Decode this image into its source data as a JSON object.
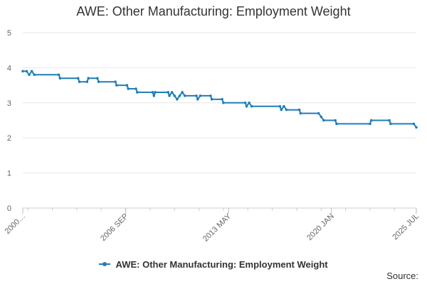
{
  "title": "AWE: Other Manufacturing: Employment Weight",
  "source_label": "Source:",
  "colors": {
    "series": "#1f7eb8",
    "grid": "#e6e6e6",
    "axis_text": "#666666"
  },
  "chart_data": {
    "type": "line",
    "title": "AWE: Other Manufacturing: Employment Weight",
    "xlabel": "",
    "ylabel": "",
    "x_range": [
      "2000-01",
      "2025-07"
    ],
    "xticks": [
      {
        "x": "2000-01",
        "label": "2000…"
      },
      {
        "x": "2006-09",
        "label": "2006 SEP"
      },
      {
        "x": "2013-05",
        "label": "2013 MAY"
      },
      {
        "x": "2020-01",
        "label": "2020 JAN"
      },
      {
        "x": "2025-07",
        "label": "2025 JUL"
      }
    ],
    "ylim": [
      0,
      5
    ],
    "yticks": [
      0,
      1,
      2,
      3,
      4,
      5
    ],
    "grid": true,
    "legend_position": "bottom",
    "series": [
      {
        "name": "AWE: Other Manufacturing: Employment Weight",
        "points": [
          [
            "2000-01",
            3.9
          ],
          [
            "2000-04",
            3.9
          ],
          [
            "2000-06",
            3.8
          ],
          [
            "2000-08",
            3.9
          ],
          [
            "2000-10",
            3.8
          ],
          [
            "2002-05",
            3.8
          ],
          [
            "2002-06",
            3.7
          ],
          [
            "2003-08",
            3.7
          ],
          [
            "2003-09",
            3.6
          ],
          [
            "2004-03",
            3.6
          ],
          [
            "2004-04",
            3.7
          ],
          [
            "2004-11",
            3.7
          ],
          [
            "2004-12",
            3.6
          ],
          [
            "2006-01",
            3.6
          ],
          [
            "2006-02",
            3.5
          ],
          [
            "2006-10",
            3.5
          ],
          [
            "2006-11",
            3.4
          ],
          [
            "2007-05",
            3.4
          ],
          [
            "2007-06",
            3.3
          ],
          [
            "2008-06",
            3.3
          ],
          [
            "2008-07",
            3.2
          ],
          [
            "2008-08",
            3.3
          ],
          [
            "2009-06",
            3.3
          ],
          [
            "2009-07",
            3.2
          ],
          [
            "2009-09",
            3.3
          ],
          [
            "2009-11",
            3.2
          ],
          [
            "2010-01",
            3.1
          ],
          [
            "2010-03",
            3.2
          ],
          [
            "2010-05",
            3.3
          ],
          [
            "2010-07",
            3.2
          ],
          [
            "2011-04",
            3.2
          ],
          [
            "2011-05",
            3.1
          ],
          [
            "2011-07",
            3.2
          ],
          [
            "2012-03",
            3.2
          ],
          [
            "2012-04",
            3.1
          ],
          [
            "2012-12",
            3.1
          ],
          [
            "2013-01",
            3.0
          ],
          [
            "2014-06",
            3.0
          ],
          [
            "2014-07",
            2.9
          ],
          [
            "2014-09",
            3.0
          ],
          [
            "2014-11",
            2.9
          ],
          [
            "2016-09",
            2.9
          ],
          [
            "2016-10",
            2.8
          ],
          [
            "2016-12",
            2.9
          ],
          [
            "2017-02",
            2.8
          ],
          [
            "2017-12",
            2.8
          ],
          [
            "2018-01",
            2.7
          ],
          [
            "2019-03",
            2.7
          ],
          [
            "2019-05",
            2.6
          ],
          [
            "2019-07",
            2.5
          ],
          [
            "2020-04",
            2.5
          ],
          [
            "2020-05",
            2.4
          ],
          [
            "2022-07",
            2.4
          ],
          [
            "2022-08",
            2.5
          ],
          [
            "2023-10",
            2.5
          ],
          [
            "2023-11",
            2.4
          ],
          [
            "2025-05",
            2.4
          ],
          [
            "2025-07",
            2.3
          ]
        ]
      }
    ]
  }
}
